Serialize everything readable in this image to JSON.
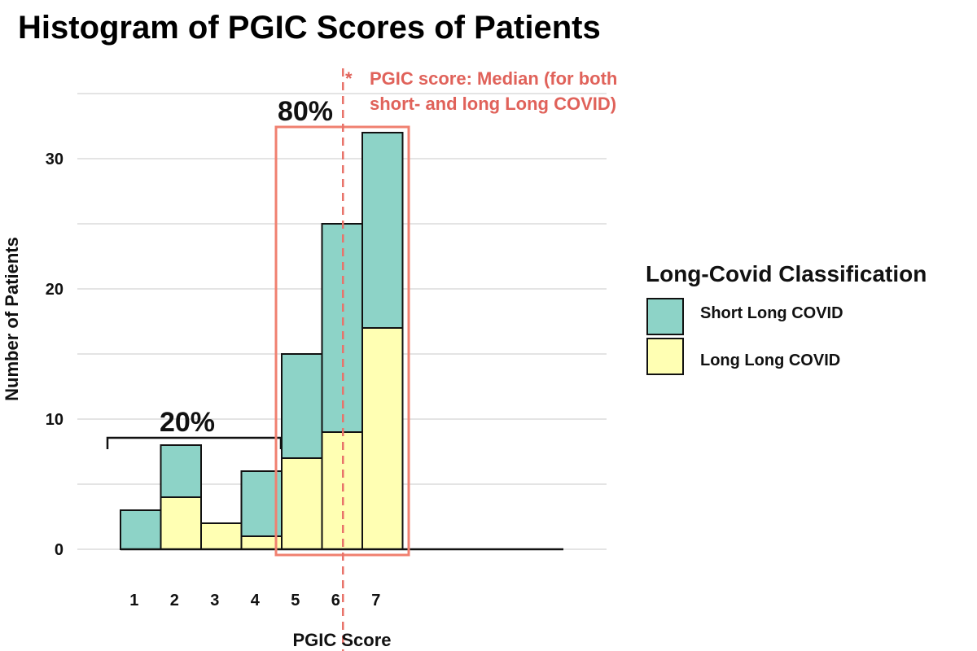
{
  "chart_data": {
    "type": "bar",
    "stacked": true,
    "title": "Histogram of PGIC Scores of Patients",
    "xlabel": "PGIC Score",
    "ylabel": "Number of Patients",
    "categories": [
      "1",
      "2",
      "3",
      "4",
      "5",
      "6",
      "7"
    ],
    "series": [
      {
        "name": "Long Long COVID",
        "values": [
          0,
          4,
          2,
          1,
          7,
          9,
          17
        ],
        "color": "#ffffb3"
      },
      {
        "name": "Short Long COVID",
        "values": [
          3,
          4,
          0,
          5,
          8,
          16,
          15
        ],
        "color": "#8dd3c7"
      }
    ],
    "totals": [
      3,
      8,
      2,
      6,
      15,
      25,
      32
    ],
    "y_ticks": [
      "0",
      "10",
      "20",
      "30"
    ],
    "ylim": [
      0,
      35
    ],
    "grid": true,
    "legend": {
      "title": "Long-Covid Classification",
      "placement": "right",
      "entries": [
        "Short Long COVID",
        "Long Long COVID"
      ]
    },
    "annotations": {
      "median_marker": "*",
      "median_label_line1": "PGIC score: Median (for both",
      "median_label_line2": "short- and long Long COVID)",
      "median_value": 6,
      "low_group_label": "20%",
      "high_group_label": "80%",
      "accent_color": "#e0625a"
    }
  }
}
